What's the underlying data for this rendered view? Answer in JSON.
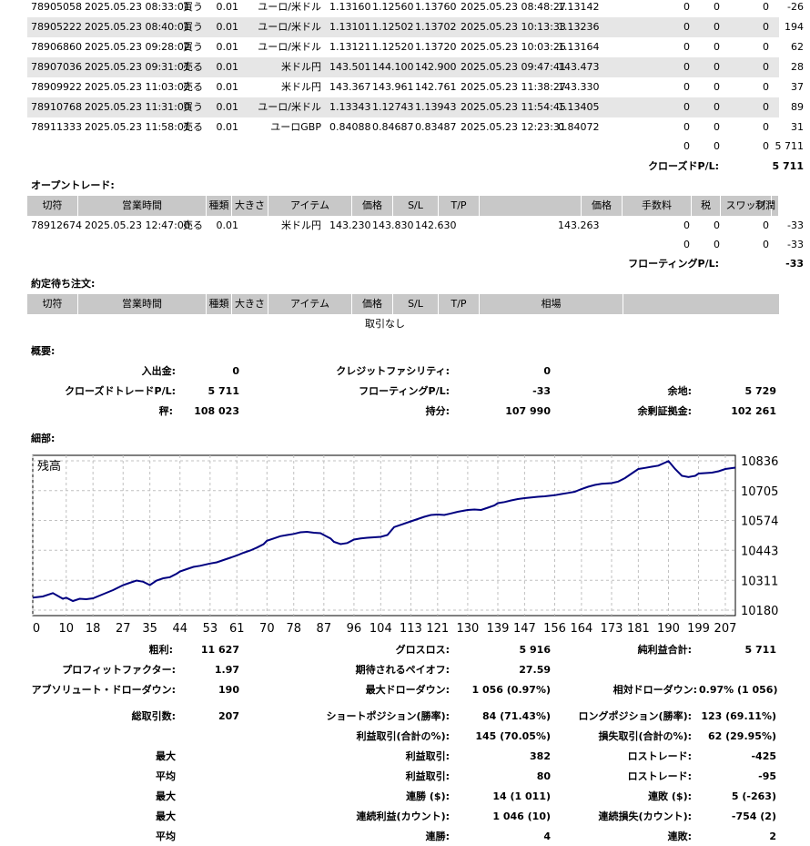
{
  "closed_trades": [
    {
      "ticket": "78905058",
      "time": "2025.05.23 08:33:01",
      "type": "買う",
      "size": "0.01",
      "item": "ユーロ/米ドル",
      "price": "1.13160",
      "sl": "1.12560",
      "tp": "1.13760",
      "close_time": "2025.05.23 08:48:27",
      "close_price": "1.13142",
      "commission": "0",
      "tax": "0",
      "swap": "0",
      "profit": "-26"
    },
    {
      "ticket": "78905222",
      "time": "2025.05.23 08:40:01",
      "type": "買う",
      "size": "0.01",
      "item": "ユーロ/米ドル",
      "price": "1.13101",
      "sl": "1.12502",
      "tp": "1.13702",
      "close_time": "2025.05.23 10:13:33",
      "close_price": "1.13236",
      "commission": "0",
      "tax": "0",
      "swap": "0",
      "profit": "194"
    },
    {
      "ticket": "78906860",
      "time": "2025.05.23 09:28:02",
      "type": "買う",
      "size": "0.01",
      "item": "ユーロ/米ドル",
      "price": "1.13121",
      "sl": "1.12520",
      "tp": "1.13720",
      "close_time": "2025.05.23 10:03:26",
      "close_price": "1.13164",
      "commission": "0",
      "tax": "0",
      "swap": "0",
      "profit": "62"
    },
    {
      "ticket": "78907036",
      "time": "2025.05.23 09:31:01",
      "type": "売る",
      "size": "0.01",
      "item": "米ドル円",
      "price": "143.501",
      "sl": "144.100",
      "tp": "142.900",
      "close_time": "2025.05.23 09:47:41",
      "close_price": "143.473",
      "commission": "0",
      "tax": "0",
      "swap": "0",
      "profit": "28"
    },
    {
      "ticket": "78909922",
      "time": "2025.05.23 11:03:02",
      "type": "売る",
      "size": "0.01",
      "item": "米ドル円",
      "price": "143.367",
      "sl": "143.961",
      "tp": "142.761",
      "close_time": "2025.05.23 11:38:27",
      "close_price": "143.330",
      "commission": "0",
      "tax": "0",
      "swap": "0",
      "profit": "37"
    },
    {
      "ticket": "78910768",
      "time": "2025.05.23 11:31:00",
      "type": "買う",
      "size": "0.01",
      "item": "ユーロ/米ドル",
      "price": "1.13343",
      "sl": "1.12743",
      "tp": "1.13943",
      "close_time": "2025.05.23 11:54:45",
      "close_price": "1.13405",
      "commission": "0",
      "tax": "0",
      "swap": "0",
      "profit": "89"
    },
    {
      "ticket": "78911333",
      "time": "2025.05.23 11:58:01",
      "type": "売る",
      "size": "0.01",
      "item": "ユーロGBP",
      "price": "0.84088",
      "sl": "0.84687",
      "tp": "0.83487",
      "close_time": "2025.05.23 12:23:31",
      "close_price": "0.84072",
      "commission": "0",
      "tax": "0",
      "swap": "0",
      "profit": "31"
    }
  ],
  "closed_totals": {
    "commission": "0",
    "tax": "0",
    "swap": "0",
    "profit": "5 711"
  },
  "closed_pl": {
    "label": "クローズドP/L:",
    "value": "5 711"
  },
  "open_section_title": "オープントレード:",
  "open_headers": {
    "ticket": "切符",
    "time": "営業時間",
    "type": "種類",
    "size": "大きさ",
    "item": "アイテム",
    "price": "価格",
    "sl": "S/L",
    "tp": "T/P",
    "cur_price": "価格",
    "commission": "手数料",
    "tax": "税",
    "swap": "スワップ",
    "profit": "利潤"
  },
  "open_trade": {
    "ticket": "78912674",
    "time": "2025.05.23 12:47:00",
    "type": "売る",
    "size": "0.01",
    "item": "米ドル円",
    "price": "143.230",
    "sl": "143.830",
    "tp": "142.630",
    "cur_price": "143.263",
    "commission": "0",
    "tax": "0",
    "swap": "0",
    "profit": "-33"
  },
  "open_totals": {
    "commission": "0",
    "tax": "0",
    "swap": "0",
    "profit": "-33"
  },
  "floating_pl": {
    "label": "フローティングP/L:",
    "value": "-33"
  },
  "pending_section_title": "約定待ち注文:",
  "pending_headers": {
    "ticket": "切符",
    "time": "営業時間",
    "type": "種類",
    "size": "大きさ",
    "item": "アイテム",
    "price": "価格",
    "sl": "S/L",
    "tp": "T/P",
    "market": "相場"
  },
  "pending_empty": "取引なし",
  "summary_title": "概要:",
  "summary": {
    "deposit_label": "入出金:",
    "deposit": "0",
    "credit_label": "クレジットファシリティ:",
    "credit": "0",
    "closed_pl_label": "クローズドトレードP/L:",
    "closed_pl": "5 711",
    "floating_label": "フローティングP/L:",
    "floating": "-33",
    "margin_label": "余地:",
    "margin": "5 729",
    "balance_label": "秤:",
    "balance": "108 023",
    "equity_label": "持分:",
    "equity": "107 990",
    "free_margin_label": "余剰証拠金:",
    "free_margin": "102 261"
  },
  "details_title": "細部:",
  "chart_data": {
    "type": "line",
    "title": "残高",
    "x_ticks": [
      "0",
      "10",
      "18",
      "27",
      "35",
      "44",
      "53",
      "61",
      "70",
      "78",
      "87",
      "96",
      "104",
      "113",
      "121",
      "130",
      "139",
      "147",
      "156",
      "164",
      "173",
      "181",
      "190",
      "199",
      "207"
    ],
    "y_ticks": [
      "10836",
      "10705",
      "10574",
      "10443",
      "10311",
      "10180"
    ],
    "ylim": [
      10180,
      10836
    ],
    "xlim": [
      0,
      210
    ],
    "grid": true,
    "series": [
      {
        "name": "",
        "color": "#000080",
        "x": [
          0,
          3,
          6,
          9,
          10,
          12,
          14,
          16,
          18,
          21,
          24,
          27,
          29,
          31,
          33,
          35,
          37,
          39,
          41,
          43,
          44,
          46,
          48,
          50,
          53,
          55,
          57,
          59,
          61,
          63,
          65,
          67,
          69,
          70,
          72,
          74,
          76,
          78,
          80,
          82,
          84,
          86,
          87,
          89,
          90,
          92,
          94,
          96,
          98,
          100,
          102,
          104,
          106,
          108,
          110,
          113,
          115,
          117,
          119,
          121,
          123,
          125,
          127,
          130,
          132,
          134,
          136,
          138,
          139,
          141,
          143,
          145,
          147,
          149,
          151,
          153,
          156,
          158,
          160,
          162,
          164,
          166,
          168,
          170,
          173,
          175,
          177,
          179,
          181,
          183,
          185,
          187,
          190,
          192,
          194,
          196,
          198,
          199,
          201,
          203,
          205,
          207,
          210
        ],
        "y": [
          10235,
          10240,
          10255,
          10230,
          10235,
          10220,
          10230,
          10228,
          10232,
          10250,
          10268,
          10290,
          10300,
          10310,
          10305,
          10290,
          10310,
          10320,
          10325,
          10340,
          10350,
          10360,
          10370,
          10375,
          10385,
          10390,
          10400,
          10410,
          10420,
          10432,
          10442,
          10455,
          10470,
          10485,
          10495,
          10505,
          10510,
          10515,
          10522,
          10524,
          10520,
          10518,
          10510,
          10495,
          10480,
          10470,
          10475,
          10490,
          10495,
          10498,
          10500,
          10502,
          10510,
          10545,
          10555,
          10570,
          10580,
          10590,
          10598,
          10600,
          10598,
          10605,
          10612,
          10620,
          10622,
          10620,
          10630,
          10640,
          10650,
          10655,
          10662,
          10668,
          10672,
          10675,
          10678,
          10680,
          10685,
          10690,
          10695,
          10700,
          10712,
          10722,
          10730,
          10735,
          10738,
          10745,
          10760,
          10780,
          10800,
          10805,
          10810,
          10815,
          10835,
          10800,
          10770,
          10765,
          10770,
          10780,
          10782,
          10784,
          10790,
          10800,
          10806
        ]
      }
    ]
  },
  "stats": {
    "gross_profit_label": "粗利:",
    "gross_profit": "11 627",
    "gross_loss_label": "グロスロス:",
    "gross_loss": "5 916",
    "net_profit_label": "純利益合計:",
    "net_profit": "5 711",
    "profit_factor_label": "プロフィットファクター:",
    "profit_factor": "1.97",
    "expected_payoff_label": "期待されるペイオフ:",
    "expected_payoff": "27.59",
    "abs_drawdown_label": "アブソリュート・ドローダウン:",
    "abs_drawdown": "190",
    "max_drawdown_label": "最大ドローダウン:",
    "max_drawdown": "1 056 (0.97%)",
    "rel_drawdown_label": "相対ドローダウン:",
    "rel_drawdown": "0.97% (1 056)",
    "total_trades_label": "総取引数:",
    "total_trades": "207",
    "short_label": "ショートポジション(勝率):",
    "short": "84 (71.43%)",
    "long_label": "ロングポジション(勝率):",
    "long": "123 (69.11%)",
    "profit_trades_label": "利益取引(合計の%):",
    "profit_trades": "145 (70.05%)",
    "loss_trades_label": "損失取引(合計の%):",
    "loss_trades": "62 (29.95%)",
    "max1_label": "最大",
    "max_profit_label": "利益取引:",
    "max_profit": "382",
    "max_loss_label": "ロストレード:",
    "max_loss": "-425",
    "avg1_label": "平均",
    "avg_profit_label": "利益取引:",
    "avg_profit": "80",
    "avg_loss_label": "ロストレード:",
    "avg_loss": "-95",
    "max2_label": "最大",
    "cons_wins_label": "連勝 ($):",
    "cons_wins": "14 (1 011)",
    "cons_losses_label": "連敗 ($):",
    "cons_losses": "5 (-263)",
    "max3_label": "最大",
    "cons_profit_label": "連続利益(カウント):",
    "cons_profit": "1 046 (10)",
    "cons_loss_label": "連続損失(カウント):",
    "cons_loss": "-754 (2)",
    "avg2_label": "平均",
    "avg_wins_label": "連勝:",
    "avg_wins": "4",
    "avg_losses_label": "連敗:",
    "avg_losses": "2"
  }
}
